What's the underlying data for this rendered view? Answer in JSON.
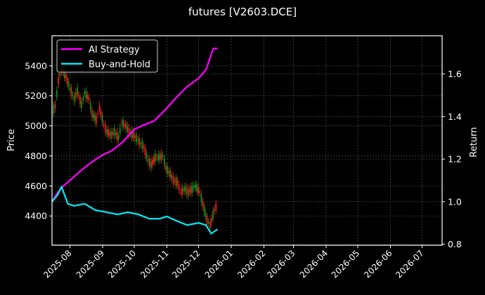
{
  "figure": {
    "title": "futures [V2603.DCE]",
    "background": "#000000",
    "frame_color": "#ffffff",
    "grid_color": "#4d4d4d"
  },
  "legend": {
    "items": [
      {
        "label": "AI Strategy",
        "color": "#ff00ff"
      },
      {
        "label": "Buy-and-Hold",
        "color": "#00e5ee"
      }
    ]
  },
  "chart_data": {
    "type": "line",
    "title": "futures [V2603.DCE]",
    "xlabel": "",
    "ylabel": "Price",
    "y2label": "Return",
    "x_ticks": [
      "2025-08",
      "2025-09",
      "2025-10",
      "2025-11",
      "2025-12",
      "2026-01",
      "2026-02",
      "2026-03",
      "2026-04",
      "2026-05",
      "2026-06",
      "2026-07"
    ],
    "y_ticks": [
      4400,
      4600,
      4800,
      5000,
      5200,
      5400
    ],
    "y2_ticks": [
      0.8,
      1.0,
      1.2,
      1.4,
      1.6
    ],
    "ylim": [
      4205,
      5600
    ],
    "y2lim": [
      0.795,
      1.78
    ],
    "xlim": [
      "2025-07-15",
      "2026-07-20"
    ],
    "grid": true,
    "legend_position": "upper left",
    "candlesticks": {
      "up_color": "#ff2020",
      "down_color": "#1a9a1a",
      "approx_closes": [
        {
          "date": "2025-07-15",
          "value": 5090
        },
        {
          "date": "2025-07-18",
          "value": 5130
        },
        {
          "date": "2025-07-21",
          "value": 5300
        },
        {
          "date": "2025-07-24",
          "value": 5380
        },
        {
          "date": "2025-07-28",
          "value": 5330
        },
        {
          "date": "2025-08-01",
          "value": 5250
        },
        {
          "date": "2025-08-05",
          "value": 5180
        },
        {
          "date": "2025-08-08",
          "value": 5230
        },
        {
          "date": "2025-08-12",
          "value": 5140
        },
        {
          "date": "2025-08-15",
          "value": 5220
        },
        {
          "date": "2025-08-19",
          "value": 5180
        },
        {
          "date": "2025-08-22",
          "value": 5080
        },
        {
          "date": "2025-08-26",
          "value": 5040
        },
        {
          "date": "2025-08-29",
          "value": 5120
        },
        {
          "date": "2025-09-02",
          "value": 5010
        },
        {
          "date": "2025-09-05",
          "value": 4960
        },
        {
          "date": "2025-09-09",
          "value": 4940
        },
        {
          "date": "2025-09-12",
          "value": 4960
        },
        {
          "date": "2025-09-16",
          "value": 4920
        },
        {
          "date": "2025-09-19",
          "value": 5020
        },
        {
          "date": "2025-09-23",
          "value": 5000
        },
        {
          "date": "2025-09-26",
          "value": 4960
        },
        {
          "date": "2025-09-30",
          "value": 4940
        },
        {
          "date": "2025-10-10",
          "value": 4860
        },
        {
          "date": "2025-10-14",
          "value": 4770
        },
        {
          "date": "2025-10-17",
          "value": 4740
        },
        {
          "date": "2025-10-21",
          "value": 4790
        },
        {
          "date": "2025-10-24",
          "value": 4790
        },
        {
          "date": "2025-10-28",
          "value": 4800
        },
        {
          "date": "2025-10-31",
          "value": 4720
        },
        {
          "date": "2025-11-04",
          "value": 4680
        },
        {
          "date": "2025-11-07",
          "value": 4640
        },
        {
          "date": "2025-11-11",
          "value": 4620
        },
        {
          "date": "2025-11-14",
          "value": 4560
        },
        {
          "date": "2025-11-18",
          "value": 4580
        },
        {
          "date": "2025-11-21",
          "value": 4560
        },
        {
          "date": "2025-11-25",
          "value": 4580
        },
        {
          "date": "2025-11-28",
          "value": 4600
        },
        {
          "date": "2025-12-02",
          "value": 4560
        },
        {
          "date": "2025-12-05",
          "value": 4480
        },
        {
          "date": "2025-12-09",
          "value": 4370
        },
        {
          "date": "2025-12-12",
          "value": 4340
        },
        {
          "date": "2025-12-16",
          "value": 4440
        },
        {
          "date": "2025-12-19",
          "value": 4480
        }
      ]
    },
    "series": [
      {
        "name": "AI Strategy",
        "axis": "right",
        "color": "#ff00ff",
        "points": [
          {
            "date": "2025-07-15",
            "value": 1.0
          },
          {
            "date": "2025-07-20",
            "value": 1.04
          },
          {
            "date": "2025-07-25",
            "value": 1.07
          },
          {
            "date": "2025-08-01",
            "value": 1.1
          },
          {
            "date": "2025-08-10",
            "value": 1.14
          },
          {
            "date": "2025-08-20",
            "value": 1.18
          },
          {
            "date": "2025-09-01",
            "value": 1.22
          },
          {
            "date": "2025-09-10",
            "value": 1.24
          },
          {
            "date": "2025-09-20",
            "value": 1.28
          },
          {
            "date": "2025-10-01",
            "value": 1.34
          },
          {
            "date": "2025-10-10",
            "value": 1.36
          },
          {
            "date": "2025-10-20",
            "value": 1.38
          },
          {
            "date": "2025-11-01",
            "value": 1.44
          },
          {
            "date": "2025-11-10",
            "value": 1.49
          },
          {
            "date": "2025-11-20",
            "value": 1.54
          },
          {
            "date": "2025-12-01",
            "value": 1.58
          },
          {
            "date": "2025-12-08",
            "value": 1.62
          },
          {
            "date": "2025-12-15",
            "value": 1.72
          },
          {
            "date": "2025-12-19",
            "value": 1.72
          }
        ]
      },
      {
        "name": "Buy-and-Hold",
        "axis": "right",
        "color": "#00e5ee",
        "points": [
          {
            "date": "2025-07-15",
            "value": 1.0
          },
          {
            "date": "2025-07-20",
            "value": 1.03
          },
          {
            "date": "2025-07-24",
            "value": 1.07
          },
          {
            "date": "2025-07-30",
            "value": 0.99
          },
          {
            "date": "2025-08-05",
            "value": 0.98
          },
          {
            "date": "2025-08-15",
            "value": 0.99
          },
          {
            "date": "2025-08-25",
            "value": 0.96
          },
          {
            "date": "2025-09-05",
            "value": 0.95
          },
          {
            "date": "2025-09-15",
            "value": 0.94
          },
          {
            "date": "2025-09-25",
            "value": 0.95
          },
          {
            "date": "2025-10-05",
            "value": 0.94
          },
          {
            "date": "2025-10-15",
            "value": 0.92
          },
          {
            "date": "2025-10-25",
            "value": 0.92
          },
          {
            "date": "2025-11-01",
            "value": 0.93
          },
          {
            "date": "2025-11-10",
            "value": 0.91
          },
          {
            "date": "2025-11-20",
            "value": 0.89
          },
          {
            "date": "2025-12-01",
            "value": 0.9
          },
          {
            "date": "2025-12-08",
            "value": 0.89
          },
          {
            "date": "2025-12-13",
            "value": 0.85
          },
          {
            "date": "2025-12-19",
            "value": 0.87
          }
        ]
      }
    ]
  }
}
